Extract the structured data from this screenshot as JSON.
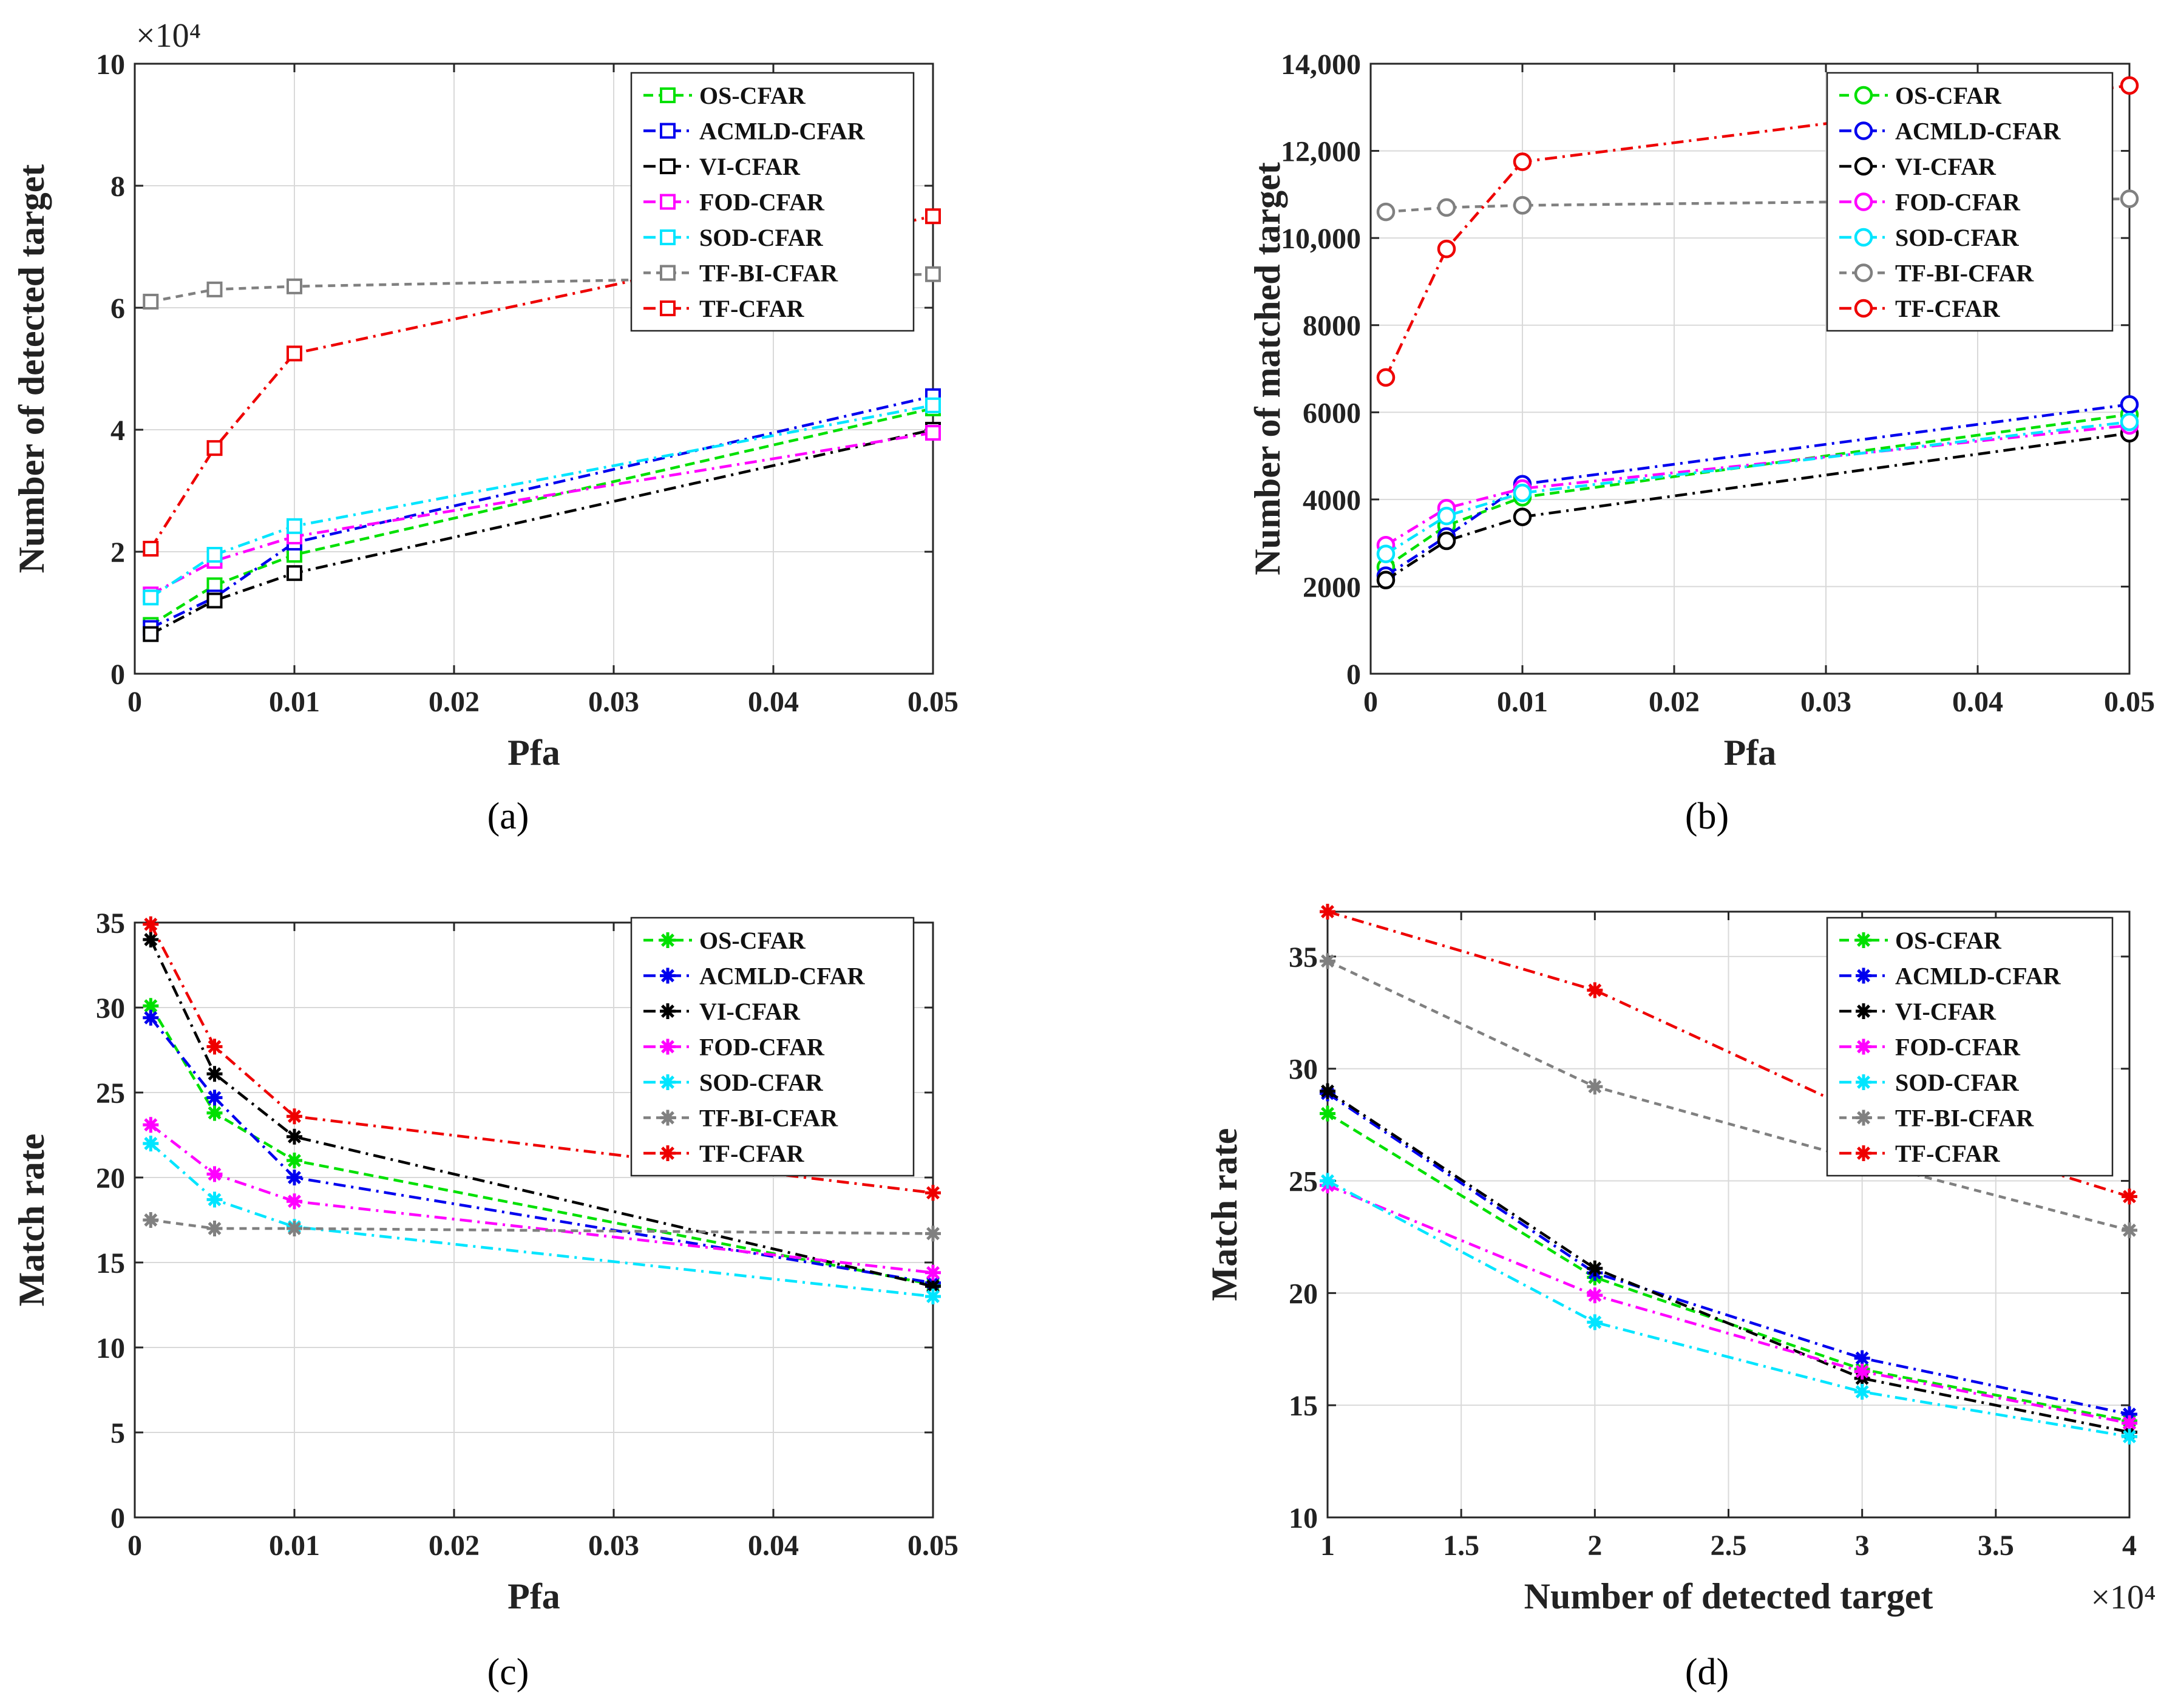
{
  "colors": {
    "OS-CFAR": "#00e000",
    "ACMLD-CFAR": "#0000ee",
    "VI-CFAR": "#000000",
    "FOD-CFAR": "#ff00ff",
    "SOD-CFAR": "#00e5ff",
    "TF-BI-CFAR": "#808080",
    "TF-CFAR": "#ee0000"
  },
  "chart_data": [
    {
      "type": "line",
      "caption": "(a)",
      "xlabel": "Pfa",
      "ylabel": "Number of detected target",
      "y_multiplier_label": "×10⁴",
      "xlim": [
        0,
        0.05
      ],
      "ylim": [
        0,
        10
      ],
      "xticks": [
        0,
        0.01,
        0.02,
        0.03,
        0.04,
        0.05
      ],
      "xtick_labels": [
        "0",
        "0.01",
        "0.02",
        "0.03",
        "0.04",
        "0.05"
      ],
      "yticks": [
        0,
        2,
        4,
        6,
        8,
        10
      ],
      "ytick_labels": [
        "0",
        "2",
        "4",
        "6",
        "8",
        "10"
      ],
      "marker": "square",
      "legend": "top-right",
      "x": [
        0.001,
        0.005,
        0.01,
        0.05
      ],
      "series": [
        {
          "name": "OS-CFAR",
          "values": [
            0.8,
            1.45,
            1.95,
            4.35
          ]
        },
        {
          "name": "ACMLD-CFAR",
          "values": [
            0.75,
            1.25,
            2.15,
            4.55
          ]
        },
        {
          "name": "VI-CFAR",
          "values": [
            0.65,
            1.2,
            1.65,
            4.0
          ]
        },
        {
          "name": "FOD-CFAR",
          "values": [
            1.3,
            1.85,
            2.25,
            3.95
          ]
        },
        {
          "name": "SOD-CFAR",
          "values": [
            1.25,
            1.95,
            2.42,
            4.4
          ]
        },
        {
          "name": "TF-BI-CFAR",
          "values": [
            6.1,
            6.3,
            6.35,
            6.55
          ]
        },
        {
          "name": "TF-CFAR",
          "values": [
            2.05,
            3.7,
            5.25,
            7.5
          ]
        }
      ]
    },
    {
      "type": "line",
      "caption": "(b)",
      "xlabel": "Pfa",
      "ylabel": "Number of matched target",
      "xlim": [
        0,
        0.05
      ],
      "ylim": [
        0,
        14000
      ],
      "xticks": [
        0,
        0.01,
        0.02,
        0.03,
        0.04,
        0.05
      ],
      "xtick_labels": [
        "0",
        "0.01",
        "0.02",
        "0.03",
        "0.04",
        "0.05"
      ],
      "yticks": [
        0,
        2000,
        4000,
        6000,
        8000,
        10000,
        12000,
        14000
      ],
      "ytick_labels": [
        "0",
        "2000",
        "4000",
        "6000",
        "8000",
        "10,000",
        "12,000",
        "14,000"
      ],
      "marker": "circle",
      "legend": "top-right",
      "x": [
        0.001,
        0.005,
        0.01,
        0.05
      ],
      "series": [
        {
          "name": "OS-CFAR",
          "values": [
            2450,
            3400,
            4050,
            5950
          ]
        },
        {
          "name": "ACMLD-CFAR",
          "values": [
            2250,
            3150,
            4350,
            6180
          ]
        },
        {
          "name": "VI-CFAR",
          "values": [
            2150,
            3050,
            3600,
            5520
          ]
        },
        {
          "name": "FOD-CFAR",
          "values": [
            2950,
            3800,
            4250,
            5700
          ]
        },
        {
          "name": "SOD-CFAR",
          "values": [
            2750,
            3620,
            4150,
            5780
          ]
        },
        {
          "name": "TF-BI-CFAR",
          "values": [
            10600,
            10700,
            10750,
            10900
          ]
        },
        {
          "name": "TF-CFAR",
          "values": [
            6800,
            9750,
            11750,
            13500
          ]
        }
      ]
    },
    {
      "type": "line",
      "caption": "(c)",
      "xlabel": "Pfa",
      "ylabel": "Match rate",
      "xlim": [
        0,
        0.05
      ],
      "ylim": [
        0,
        35
      ],
      "xticks": [
        0,
        0.01,
        0.02,
        0.03,
        0.04,
        0.05
      ],
      "xtick_labels": [
        "0",
        "0.01",
        "0.02",
        "0.03",
        "0.04",
        "0.05"
      ],
      "yticks": [
        0,
        5,
        10,
        15,
        20,
        25,
        30,
        35
      ],
      "ytick_labels": [
        "0",
        "5",
        "10",
        "15",
        "20",
        "25",
        "30",
        "35"
      ],
      "marker": "star",
      "legend": "top-right",
      "x": [
        0.001,
        0.005,
        0.01,
        0.05
      ],
      "series": [
        {
          "name": "OS-CFAR",
          "values": [
            30.1,
            23.8,
            21.0,
            13.7
          ]
        },
        {
          "name": "ACMLD-CFAR",
          "values": [
            29.4,
            24.7,
            20.0,
            13.8
          ]
        },
        {
          "name": "VI-CFAR",
          "values": [
            34.0,
            26.1,
            22.4,
            13.6
          ]
        },
        {
          "name": "FOD-CFAR",
          "values": [
            23.1,
            20.2,
            18.6,
            14.4
          ]
        },
        {
          "name": "SOD-CFAR",
          "values": [
            22.0,
            18.7,
            17.1,
            13.0
          ]
        },
        {
          "name": "TF-BI-CFAR",
          "values": [
            17.5,
            17.0,
            17.0,
            16.7
          ]
        },
        {
          "name": "TF-CFAR",
          "values": [
            34.9,
            27.7,
            23.6,
            19.1
          ]
        }
      ]
    },
    {
      "type": "line",
      "caption": "(d)",
      "xlabel": "Number of detected target",
      "x_multiplier_label": "×10⁴",
      "ylabel": "Match rate",
      "xlim": [
        1,
        4
      ],
      "ylim": [
        10,
        37
      ],
      "xticks": [
        1,
        1.5,
        2,
        2.5,
        3,
        3.5,
        4
      ],
      "xtick_labels": [
        "1",
        "1.5",
        "2",
        "2.5",
        "3",
        "3.5",
        "4"
      ],
      "yticks": [
        10,
        15,
        20,
        25,
        30,
        35
      ],
      "ytick_labels": [
        "10",
        "15",
        "20",
        "25",
        "30",
        "35"
      ],
      "marker": "star",
      "legend": "top-right",
      "x": [
        1,
        2,
        3,
        4
      ],
      "series": [
        {
          "name": "OS-CFAR",
          "values": [
            28.0,
            20.7,
            16.6,
            14.3
          ]
        },
        {
          "name": "ACMLD-CFAR",
          "values": [
            28.9,
            20.9,
            17.1,
            14.6
          ]
        },
        {
          "name": "VI-CFAR",
          "values": [
            29.0,
            21.1,
            16.2,
            13.8
          ]
        },
        {
          "name": "FOD-CFAR",
          "values": [
            24.8,
            19.9,
            16.5,
            14.2
          ]
        },
        {
          "name": "SOD-CFAR",
          "values": [
            25.0,
            18.7,
            15.6,
            13.6
          ]
        },
        {
          "name": "TF-BI-CFAR",
          "values": [
            34.8,
            29.2,
            25.9,
            22.8
          ]
        },
        {
          "name": "TF-CFAR",
          "values": [
            37.0,
            33.5,
            28.0,
            24.3
          ]
        }
      ]
    }
  ]
}
